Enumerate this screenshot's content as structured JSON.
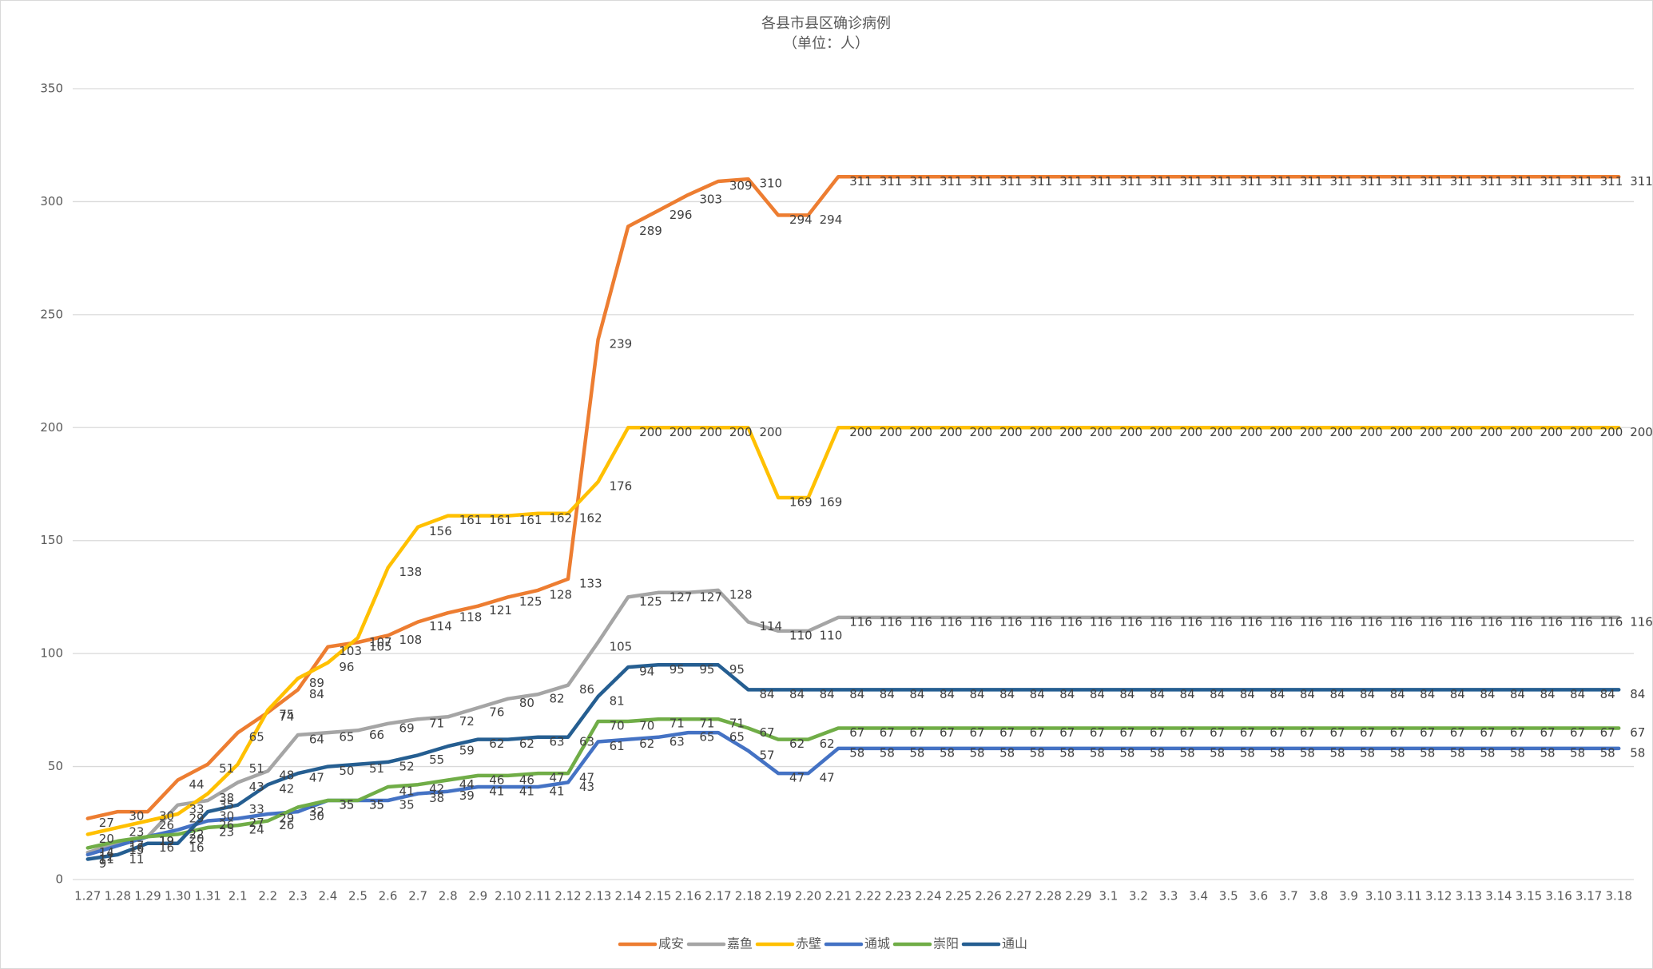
{
  "chart_data": {
    "type": "line",
    "title": "各县市县区确诊病例",
    "subtitle": "（单位：人）",
    "categories": [
      "1.27",
      "1.28",
      "1.29",
      "1.30",
      "1.31",
      "2.1",
      "2.2",
      "2.3",
      "2.4",
      "2.5",
      "2.6",
      "2.7",
      "2.8",
      "2.9",
      "2.10",
      "2.11",
      "2.12",
      "2.13",
      "2.14",
      "2.15",
      "2.16",
      "2.17",
      "2.18",
      "2.19",
      "2.20",
      "2.21",
      "2.22",
      "2.23",
      "2.24",
      "2.25",
      "2.26",
      "2.27",
      "2.28",
      "2.29",
      "3.1",
      "3.2",
      "3.3",
      "3.4",
      "3.5",
      "3.6",
      "3.7",
      "3.8",
      "3.9",
      "3.10",
      "3.11",
      "3.12",
      "3.13",
      "3.14",
      "3.15",
      "3.16",
      "3.17",
      "3.18"
    ],
    "series": [
      {
        "name": "咸安",
        "color": "#ED7D31",
        "values": [
          27,
          30,
          30,
          44,
          51,
          65,
          74,
          84,
          103,
          105,
          108,
          114,
          118,
          121,
          125,
          128,
          133,
          239,
          289,
          296,
          303,
          309,
          310,
          294,
          294,
          311,
          311,
          311,
          311,
          311,
          311,
          311,
          311,
          311,
          311,
          311,
          311,
          311,
          311,
          311,
          311,
          311,
          311,
          311,
          311,
          311,
          311,
          311,
          311,
          311,
          311,
          311
        ]
      },
      {
        "name": "嘉鱼",
        "color": "#A5A5A5",
        "values": [
          12,
          16,
          19,
          33,
          35,
          43,
          48,
          64,
          65,
          66,
          69,
          71,
          72,
          76,
          80,
          82,
          86,
          105,
          125,
          127,
          127,
          128,
          114,
          110,
          110,
          116,
          116,
          116,
          116,
          116,
          116,
          116,
          116,
          116,
          116,
          116,
          116,
          116,
          116,
          116,
          116,
          116,
          116,
          116,
          116,
          116,
          116,
          116,
          116,
          116,
          116,
          116
        ]
      },
      {
        "name": "赤壁",
        "color": "#FFC000",
        "values": [
          20,
          23,
          26,
          29,
          38,
          51,
          75,
          89,
          96,
          107,
          138,
          156,
          161,
          161,
          161,
          162,
          162,
          176,
          200,
          200,
          200,
          200,
          200,
          169,
          169,
          200,
          200,
          200,
          200,
          200,
          200,
          200,
          200,
          200,
          200,
          200,
          200,
          200,
          200,
          200,
          200,
          200,
          200,
          200,
          200,
          200,
          200,
          200,
          200,
          200,
          200,
          200
        ]
      },
      {
        "name": "通城",
        "color": "#4472C4",
        "values": [
          11,
          15,
          19,
          22,
          26,
          27,
          29,
          30,
          35,
          35,
          35,
          38,
          39,
          41,
          41,
          41,
          43,
          61,
          62,
          63,
          65,
          65,
          57,
          47,
          47,
          58,
          58,
          58,
          58,
          58,
          58,
          58,
          58,
          58,
          58,
          58,
          58,
          58,
          58,
          58,
          58,
          58,
          58,
          58,
          58,
          58,
          58,
          58,
          58,
          58,
          58,
          58
        ]
      },
      {
        "name": "崇阳",
        "color": "#70AD47",
        "values": [
          14,
          17,
          19,
          20,
          23,
          24,
          26,
          32,
          35,
          35,
          41,
          42,
          44,
          46,
          46,
          47,
          47,
          70,
          70,
          71,
          71,
          71,
          67,
          62,
          62,
          67,
          67,
          67,
          67,
          67,
          67,
          67,
          67,
          67,
          67,
          67,
          67,
          67,
          67,
          67,
          67,
          67,
          67,
          67,
          67,
          67,
          67,
          67,
          67,
          67,
          67,
          67
        ]
      },
      {
        "name": "通山",
        "color": "#255E91",
        "values": [
          9,
          11,
          16,
          16,
          30,
          33,
          42,
          47,
          50,
          51,
          52,
          55,
          59,
          62,
          62,
          63,
          63,
          81,
          94,
          95,
          95,
          95,
          84,
          84,
          84,
          84,
          84,
          84,
          84,
          84,
          84,
          84,
          84,
          84,
          84,
          84,
          84,
          84,
          84,
          84,
          84,
          84,
          84,
          84,
          84,
          84,
          84,
          84,
          84,
          84,
          84,
          84
        ]
      }
    ],
    "ylim": [
      0,
      350
    ],
    "yticks": [
      0,
      50,
      100,
      150,
      200,
      250,
      300,
      350
    ],
    "grid": true,
    "legend": "bottom"
  }
}
